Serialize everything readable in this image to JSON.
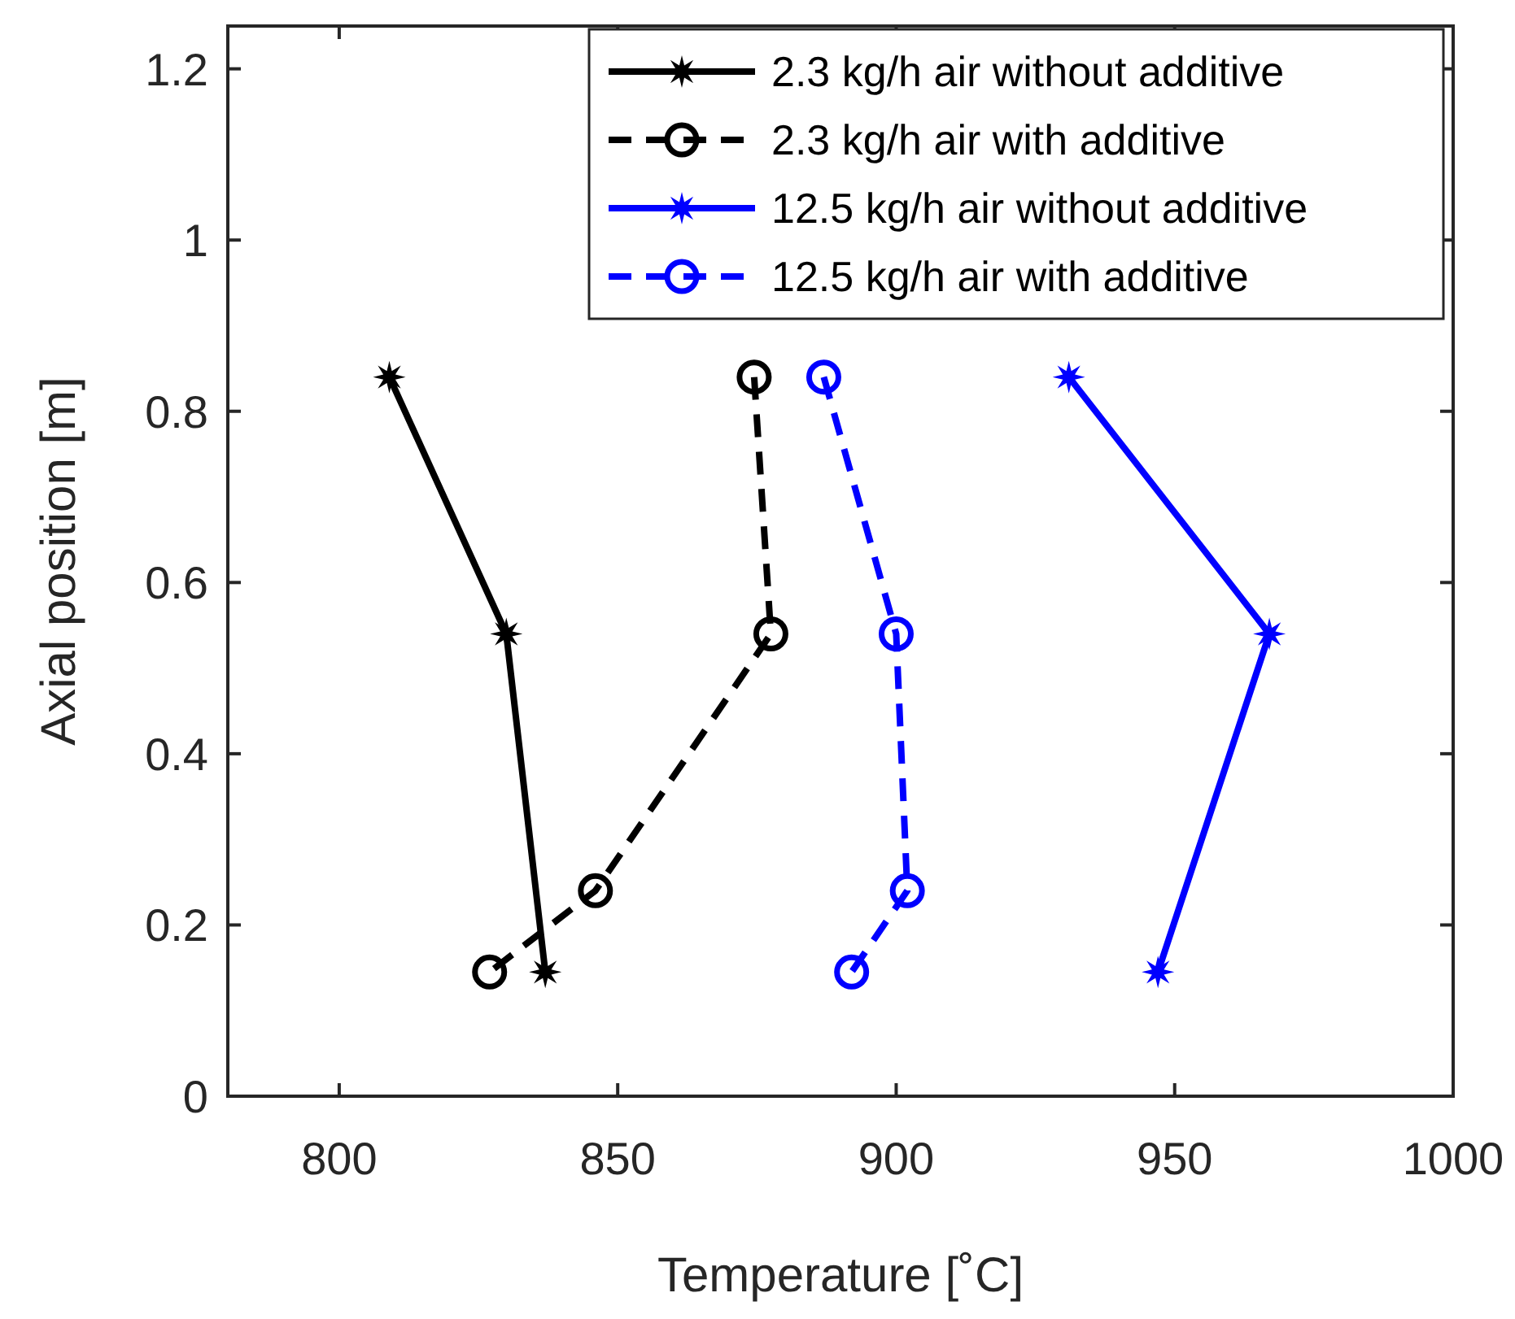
{
  "chart_data": {
    "type": "line",
    "xlabel": "Temperature [˚C]",
    "ylabel": "Axial position [m]",
    "xlim": [
      780,
      1000
    ],
    "xticks": [
      800,
      850,
      900,
      950,
      1000
    ],
    "ylim": [
      0,
      1.25
    ],
    "yticks": [
      0,
      0.2,
      0.4,
      0.6,
      0.8,
      1,
      1.2
    ],
    "grid": false,
    "legend": "top right",
    "series": [
      {
        "name": "2.3 kg/h air without additive",
        "color": "#000000",
        "marker": "star",
        "line_style": "solid",
        "x": [
          809,
          830,
          837
        ],
        "values": [
          0.84,
          0.54,
          0.145
        ]
      },
      {
        "name": "2.3 kg/h air with additive",
        "color": "#000000",
        "marker": "circle",
        "line_style": "dashed",
        "x": [
          874.5,
          877.5,
          846,
          827
        ],
        "values": [
          0.84,
          0.54,
          0.24,
          0.145
        ]
      },
      {
        "name": "12.5 kg/h air without additive",
        "color": "#0000ff",
        "marker": "star",
        "line_style": "solid",
        "x": [
          931,
          967,
          947
        ],
        "values": [
          0.84,
          0.54,
          0.145
        ]
      },
      {
        "name": "12.5 kg/h air with additive",
        "color": "#0000ff",
        "marker": "circle",
        "line_style": "dashed",
        "x": [
          887,
          900,
          902,
          892
        ],
        "values": [
          0.84,
          0.54,
          0.24,
          0.145
        ]
      }
    ]
  }
}
